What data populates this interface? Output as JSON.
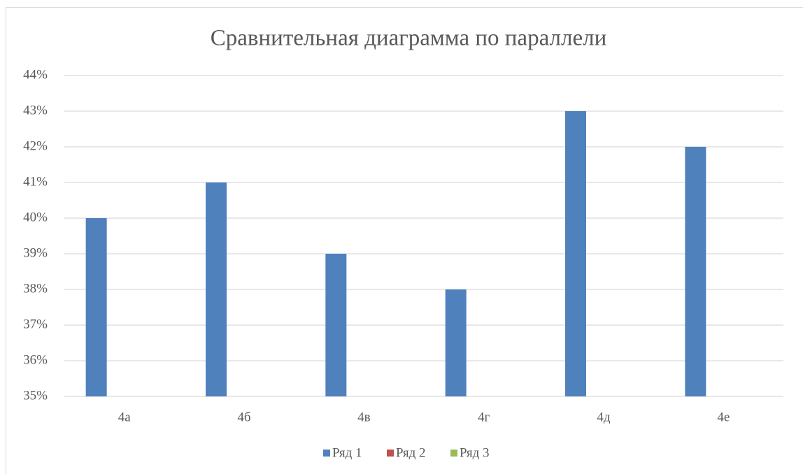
{
  "chart_data": {
    "type": "bar",
    "title": "Сравнительная диаграмма по параллели",
    "categories": [
      "4а",
      "4б",
      "4в",
      "4г",
      "4д",
      "4е"
    ],
    "series": [
      {
        "name": "Ряд 1",
        "color": "#4f81bd",
        "values": [
          40,
          41,
          39,
          38,
          43,
          42
        ]
      },
      {
        "name": "Ряд 2",
        "color": "#c0504d",
        "values": [
          null,
          null,
          null,
          null,
          null,
          null
        ]
      },
      {
        "name": "Ряд 3",
        "color": "#9bbb59",
        "values": [
          null,
          null,
          null,
          null,
          null,
          null
        ]
      }
    ],
    "ylim": [
      35,
      44
    ],
    "yticks": [
      {
        "value": 35,
        "label": "35%"
      },
      {
        "value": 36,
        "label": "36%"
      },
      {
        "value": 37,
        "label": "37%"
      },
      {
        "value": 38,
        "label": "38%"
      },
      {
        "value": 39,
        "label": "39%"
      },
      {
        "value": 40,
        "label": "40%"
      },
      {
        "value": 41,
        "label": "41%"
      },
      {
        "value": 42,
        "label": "42%"
      },
      {
        "value": 43,
        "label": "43%"
      },
      {
        "value": 44,
        "label": "44%"
      }
    ],
    "grid": true,
    "legend": "bottom"
  }
}
